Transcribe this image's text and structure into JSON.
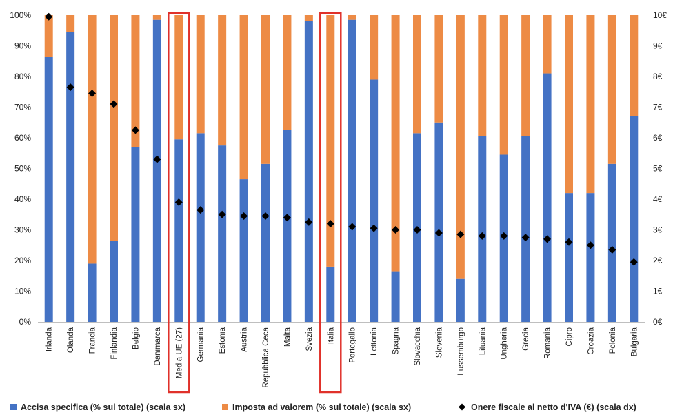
{
  "chart_data": {
    "type": "bar",
    "stacked": true,
    "categories": [
      "Irlanda",
      "Olanda",
      "Francia",
      "Finlandia",
      "Belgio",
      "Danimarca",
      "Media UE (27)",
      "Germania",
      "Estonia",
      "Austria",
      "Repubblica Ceca",
      "Malta",
      "Svezia",
      "Italia",
      "Portogallo",
      "Lettonia",
      "Spagna",
      "Slovacchia",
      "Slovenia",
      "Lussemburgo",
      "Lituania",
      "Ungheria",
      "Grecia",
      "Romania",
      "Cipro",
      "Croazia",
      "Polonia",
      "Bulgaria"
    ],
    "highlighted": [
      "Media UE (27)",
      "Italia"
    ],
    "series": [
      {
        "name": "Accisa specifica (% sul totale) (scala sx)",
        "type": "bar",
        "axis": "left",
        "color": "#4472C4",
        "values": [
          86.5,
          94.5,
          19,
          26.5,
          57,
          98.5,
          59.5,
          61.5,
          57.5,
          46.5,
          51.5,
          62.5,
          98,
          18,
          98.5,
          79,
          16.5,
          61.5,
          65,
          14,
          60.5,
          54.5,
          60.5,
          81,
          42,
          42,
          51.5,
          67
        ]
      },
      {
        "name": "Imposta ad valorem (% sul totale) (scala sx)",
        "type": "bar",
        "axis": "left",
        "color": "#ED8B45",
        "values": [
          13.5,
          5.5,
          81,
          73.5,
          43,
          1.5,
          40.5,
          38.5,
          42.5,
          53.5,
          48.5,
          37.5,
          2,
          82,
          1.5,
          21,
          83.5,
          38.5,
          35,
          86,
          39.5,
          45.5,
          39.5,
          19,
          58,
          58,
          48.5,
          33
        ]
      },
      {
        "name": "Onere fiscale al netto d'IVA (€) (scala dx)",
        "type": "scatter",
        "axis": "right",
        "color": "#000000",
        "values": [
          9.95,
          7.65,
          7.45,
          7.1,
          6.25,
          5.3,
          3.9,
          3.65,
          3.5,
          3.45,
          3.45,
          3.4,
          3.25,
          3.2,
          3.1,
          3.05,
          3.0,
          3.0,
          2.9,
          2.85,
          2.8,
          2.8,
          2.75,
          2.7,
          2.6,
          2.5,
          2.35,
          1.95
        ]
      }
    ],
    "y_left": {
      "min": 0,
      "max": 100,
      "step": 10,
      "ticks": [
        "0%",
        "10%",
        "20%",
        "30%",
        "40%",
        "50%",
        "60%",
        "70%",
        "80%",
        "90%",
        "100%"
      ]
    },
    "y_right": {
      "min": 0,
      "max": 10,
      "step": 1,
      "ticks": [
        "0€",
        "1€",
        "2€",
        "3€",
        "4€",
        "5€",
        "6€",
        "7€",
        "8€",
        "9€",
        "10€"
      ]
    },
    "grid": false,
    "legend": {
      "position": "bottom",
      "entries": [
        "Accisa specifica (% sul totale) (scala sx)",
        "Imposta ad valorem (% sul totale) (scala sx)",
        "Onere fiscale al netto d'IVA (€) (scala dx)"
      ]
    },
    "highlight_color": "#E0312A"
  }
}
